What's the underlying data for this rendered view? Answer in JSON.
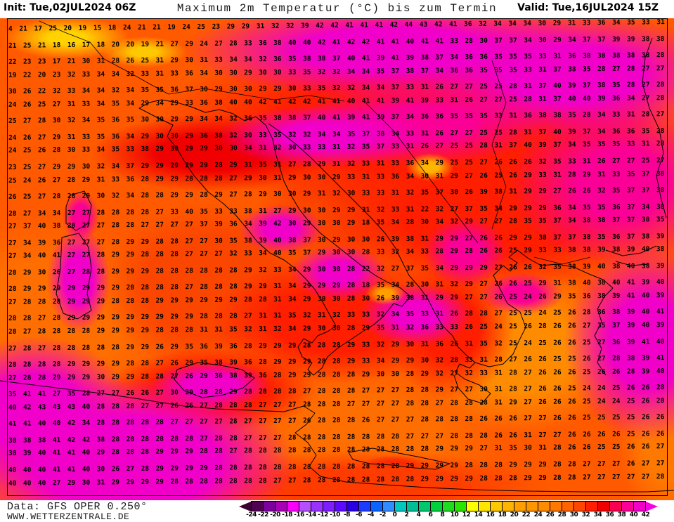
{
  "header": {
    "init": "Init: Tue,02JUL2024 06Z",
    "title": "Maximum 2m Temperatur (°C) bis zum Termin",
    "valid": "Valid: Tue,16JUL2024 15Z"
  },
  "footer": {
    "data_source": "Data: GFS OPER 0.250°",
    "website": "WWW.WETTERZENTRALE.DE"
  },
  "colorbar": {
    "ticks": [
      "-24",
      "-22",
      "-20",
      "-18",
      "-16",
      "-14",
      "-12",
      "-10",
      "-8",
      "-6",
      "-4",
      "-2",
      "0",
      "2",
      "4",
      "6",
      "8",
      "10",
      "12",
      "14",
      "16",
      "18",
      "20",
      "22",
      "24",
      "26",
      "28",
      "30",
      "32",
      "34",
      "36",
      "38",
      "40",
      "42"
    ],
    "colors": [
      "#500050",
      "#7C009E",
      "#A800B4",
      "#FA00FA",
      "#B450FF",
      "#9A32FF",
      "#7D1EFF",
      "#5A0AFF",
      "#2800E1",
      "#1E3CFF",
      "#0A64FF",
      "#328CFF",
      "#00C8BE",
      "#00BE96",
      "#00C86E",
      "#00D23C",
      "#1EDC1E",
      "#28E600",
      "#FFFF00",
      "#FFE600",
      "#FFC800",
      "#FFB400",
      "#FFA000",
      "#FF9600",
      "#FF8C00",
      "#FF7800",
      "#FF6400",
      "#FF4600",
      "#FF1E00",
      "#F00000",
      "#FA0050",
      "#FA0096",
      "#F000C8"
    ],
    "arrow_left_color": "#3C0032",
    "arrow_right_color": "#FA00E6"
  },
  "map": {
    "base_sea_color": "#FF5A00",
    "hot_color": "#F000C8",
    "red_color": "#F00000",
    "warm_orange": "#FF8C00",
    "alps_yellow": "#FFD200",
    "value_rows": [
      "4 21 17 25 20 19 15 18 24 21 21 19 24 25 23 29 29 31 32 32 39 42 42 41 41 41 42 44 43 42 41 36 32 34 34 34 30 29 31 33 36 34 35 33 31",
      "21 25 21 18 16 17 18 20 20 19 21 27 29 24 27 28 33 36 38 40 40 42 41 42 42 41 41 40 41 41 33 28 30 37 37 34 30 29 34 37 37 39 39 38 38",
      "22 23 23 17 21 30 31 28 26 25 31 29 30 31 33 34 34 32 36 35 38 38 37 40 41 39 41 39 38 37 34 36 36 35 35 35 33 31 36 38 38 38 38 38 28",
      "19 22 20 23 32 33 34 34 32 33 31 33 36 34 30 30 29 30 30 33 35 32 32 34 34 35 37 38 37 34 36 36 35 35 35 33 31 37 38 35 28 27 28 27 27",
      "30 26 22 32 33 34 34 32 34 35 35 36 37 30 29 30 30 29 29 30 33 35 32 32 34 34 37 33 31 26 27 27 25 25 28 31 37 40 39 37 38 35 28 27 28",
      "24 26 25 27 31 33 34 35 34 29 34 29 33 36 38 40 40 42 41 42 42 41 41 40 41 41 39 41 39 33 31 26 27 27 25 28 31 37 40 40 39 36 34 27 28",
      "25 27 28 30 32 34 35 36 35 30 30 29 29 34 34 32 36 35 38 38 37 40 41 39 41 39 37 34 36 36 35 35 35 33 31 36 38 38 35 28 34 33 31 28 27",
      "24 26 27 29 31 33 35 36 34 29 30 30 29 36 38 32 30 33 35 32 32 34 34 35 37 38 34 33 31 26 27 27 25 25 28 31 37 40 39 37 34 36 36 35 28",
      "24 25 26 28 30 33 34 35 33 38 29 30 29 29 30 30 34 31 32 30 33 33 31 32 35 37 33 31 26 27 25 25 28 31 37 40 39 37 34 35 35 35 33 31 28",
      "23 25 27 29 29 30 32 34 37 29 29 29 29 29 28 29 31 35 31 27 28 29 31 32 33 31 33 36 34 29 25 25 27 26 26 26 32 35 33 31 26 27 27 25 27",
      "25 24 26 27 28 29 31 33 36 28 29 29 28 28 28 27 29 30 31 29 30 30 29 33 31 33 36 34 30 31 29 27 26 25 26 29 33 31 28 29 31 33 35 37 38",
      "26 25 27 28 28 29 30 32 34 28 28 29 29 28 29 27 28 29 30 30 29 31 32 30 33 33 31 32 35 37 30 26 39 38 31 29 29 27 26 26 32 35 37 37 38",
      "28 27 34 34 27 27 28 28 28 28 27 33 40 35 33 33 38 31 27 29 30 30 29 29 31 32 33 31 22 32 27 37 35 34 29 29 29 36 34 35 35 36 37 34 38",
      "27 37 40 38 28 27 27 28 28 27 27 27 27 37 39 36 34 39 42 30 29 30 30 29 18 35 34 28 30 34 32 29 27 27 28 35 35 37 34 38 38 37 37 38 35",
      "27 34 39 36 27 27 27 28 29 29 28 28 27 27 30 35 38 39 40 38 37 30 29 30 30 26 39 38 31 29 29 27 26 26 29 29 38 37 37 38 35 36 37 38 39",
      "27 34 40 41 27 27 28 29 29 28 28 28 27 27 27 32 33 34 40 35 37 29 30 30 28 33 32 34 33 28 29 28 26 26 25 29 33 33 38 38 39 38 39 40 38",
      "28 29 30 26 27 28 28 29 29 29 28 28 28 28 28 28 29 32 33 34 29 30 30 28 22 32 27 37 35 34 29 29 29 27 26 26 32 35 38 39 40 38 40 38 39",
      "28 29 29 29 29 29 29 29 28 28 28 28 27 28 28 28 29 29 31 34 29 29 29 28 18 35 34 28 30 31 32 29 27 26 26 25 29 31 38 40 38 40 41 39 40",
      "27 28 28 28 29 29 29 28 28 28 29 29 29 29 29 29 28 28 31 34 29 30 30 28 30 26 39 38 31 29 29 27 27 26 25 24 26 29 35 36 38 39 41 40 39",
      "28 28 27 28 29 29 29 29 29 29 29 29 29 28 28 28 27 31 31 35 32 31 32 33 33 32 34 35 33 31 26 28 28 27 25 25 24 25 26 28 36 38 39 40 41",
      "28 27 28 28 28 28 29 29 29 29 28 28 28 31 31 35 32 31 32 34 29 30 30 28 29 35 31 32 36 33 33 26 25 24 25 26 28 26 26 27 35 37 39 40 39",
      "27 28 27 28 28 28 28 28 29 29 26 29 35 36 39 36 28 29 29 29 28 28 28 29 33 32 29 30 31 36 26 31 35 32 25 24 25 26 26 25 27 36 39 41 40",
      "28 28 28 28 29 29 29 29 28 28 27 26 29 35 38 39 36 28 29 29 29 28 28 29 33 34 29 29 30 32 28 33 31 28 27 26 26 25 25 26 27 28 38 39 41",
      "27 28 28 29 29 29 30 29 29 28 28 27 26 29 36 38 39 36 28 29 29 28 28 28 29 30 30 28 29 32 27 32 33 31 28 27 26 26 26 25 26 26 28 39 40",
      "35 41 41 27 35 28 27 27 26 26 27 30 29 28 28 29 28 28 28 28 27 28 28 28 27 27 27 28 28 29 27 27 30 31 28 27 26 26 25 24 24 25 26 26 28",
      "40 42 43 43 43 40 28 28 28 27 27 26 26 27 28 28 28 27 27 27 28 28 28 27 27 27 27 28 28 27 28 28 28 31 29 27 26 26 26 25 24 24 25 26 28",
      "41 41 40 40 42 34 28 28 28 28 28 27 27 27 27 28 27 27 27 27 26 28 28 28 26 27 27 27 28 28 28 28 26 26 26 27 27 26 26 25 25 25 25 26 26",
      "38 38 38 41 42 42 38 28 28 28 28 28 28 27 28 28 27 27 27 28 28 28 28 28 28 28 28 27 27 27 28 28 28 26 26 31 27 27 26 26 26 26 25 26 26",
      "38 39 40 41 41 40 29 28 28 28 29 29 29 28 28 27 28 28 28 28 28 28 28 28 28 28 28 28 28 29 29 29 27 31 35 30 31 28 26 26 25 25 26 26 27",
      "40 40 40 41 41 40 30 26 27 28 29 29 29 29 28 28 28 28 28 28 28 28 28 28 28 28 28 29 29 29 29 28 28 28 29 29 29 28 28 27 27 27 26 27 27",
      "40 40 40 27 29 30 31 29 29 29 29 28 28 28 28 28 28 28 27 27 28 28 28 28 28 28 28 28 29 29 29 29 28 28 28 29 29 28 28 27 27 27 27 27 28"
    ]
  }
}
